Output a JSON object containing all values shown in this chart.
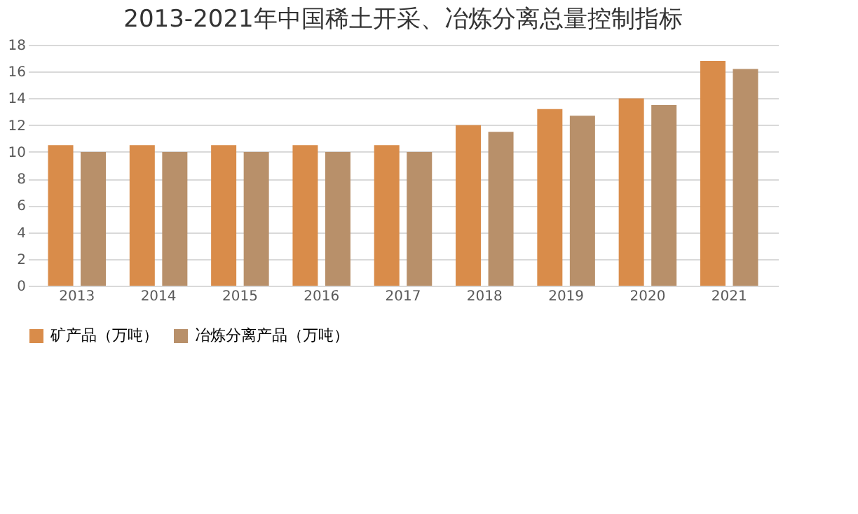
{
  "chart_data": {
    "type": "bar",
    "title": "2013-2021年中国稀土开采、冶炼分离总量控制指标",
    "categories": [
      "2013",
      "2014",
      "2015",
      "2016",
      "2017",
      "2018",
      "2019",
      "2020",
      "2021"
    ],
    "series": [
      {
        "name": "矿产品（万吨）",
        "color": "#d98c4a",
        "values": [
          10.5,
          10.5,
          10.5,
          10.5,
          10.5,
          12,
          13.2,
          14,
          16.8
        ]
      },
      {
        "name": "冶炼分离产品（万吨）",
        "color": "#b8906a",
        "values": [
          10,
          10,
          10,
          10,
          10,
          11.5,
          12.7,
          13.5,
          16.2
        ]
      }
    ],
    "ylim": [
      0,
      18
    ],
    "yticks": [
      0,
      2,
      4,
      6,
      8,
      10,
      12,
      14,
      16,
      18
    ],
    "grid": "y",
    "legend": "bottom"
  }
}
